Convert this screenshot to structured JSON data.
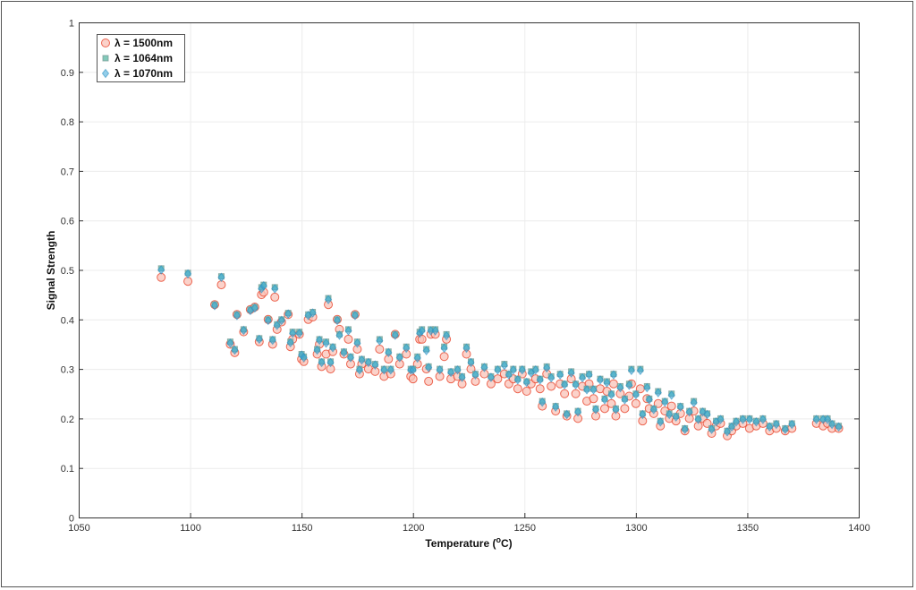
{
  "chart_data": {
    "type": "scatter",
    "xlabel": "Temperature  (",
    "xlabel_unit_sup": "o",
    "xlabel_unit": "C)",
    "ylabel": "Signal Strength",
    "xlim": [
      1050,
      1400
    ],
    "ylim": [
      0,
      1
    ],
    "xticks": [
      1050,
      1100,
      1150,
      1200,
      1250,
      1300,
      1350,
      1400
    ],
    "yticks": [
      0,
      0.1,
      0.2,
      0.3,
      0.4,
      0.5,
      0.6,
      0.7,
      0.8,
      0.9,
      1
    ],
    "xtick_labels": [
      "1050",
      "1100",
      "1150",
      "1200",
      "1250",
      "1300",
      "1350",
      "1400"
    ],
    "ytick_labels": [
      "0",
      "0.1",
      "0.2",
      "0.3",
      "0.4",
      "0.5",
      "0.6",
      "0.7",
      "0.8",
      "0.9",
      "1"
    ],
    "grid": true,
    "legend_position": "top-left",
    "x": [
      1087,
      1099,
      1111,
      1114,
      1118,
      1120,
      1121,
      1124,
      1127,
      1129,
      1131,
      1132,
      1133,
      1135,
      1137,
      1138,
      1139,
      1141,
      1144,
      1145,
      1146,
      1149,
      1150,
      1151,
      1153,
      1155,
      1157,
      1158,
      1159,
      1161,
      1162,
      1163,
      1164,
      1166,
      1167,
      1169,
      1171,
      1172,
      1174,
      1175,
      1176,
      1177,
      1180,
      1183,
      1185,
      1187,
      1189,
      1190,
      1192,
      1194,
      1197,
      1199,
      1200,
      1202,
      1203,
      1204,
      1206,
      1207,
      1208,
      1210,
      1212,
      1214,
      1215,
      1217,
      1220,
      1222,
      1224,
      1226,
      1228,
      1232,
      1235,
      1238,
      1241,
      1243,
      1245,
      1247,
      1249,
      1251,
      1253,
      1255,
      1257,
      1258,
      1260,
      1262,
      1264,
      1266,
      1268,
      1269,
      1271,
      1273,
      1274,
      1276,
      1278,
      1279,
      1281,
      1282,
      1284,
      1286,
      1287,
      1289,
      1290,
      1291,
      1293,
      1295,
      1297,
      1298,
      1300,
      1302,
      1303,
      1305,
      1306,
      1308,
      1310,
      1311,
      1313,
      1315,
      1316,
      1318,
      1320,
      1322,
      1324,
      1326,
      1328,
      1330,
      1332,
      1334,
      1336,
      1338,
      1341,
      1343,
      1345,
      1348,
      1351,
      1354,
      1357,
      1360,
      1363,
      1367,
      1370,
      1381,
      1384,
      1386,
      1388,
      1391
    ],
    "series": [
      {
        "name": "λ  =  1500nm",
        "marker": "circle",
        "color": "#e8452c",
        "fill": "#f9c3b8",
        "values": [
          0.485,
          0.477,
          0.43,
          0.47,
          0.35,
          0.333,
          0.41,
          0.375,
          0.42,
          0.425,
          0.355,
          0.45,
          0.455,
          0.4,
          0.35,
          0.445,
          0.38,
          0.395,
          0.41,
          0.345,
          0.36,
          0.37,
          0.32,
          0.315,
          0.4,
          0.405,
          0.33,
          0.35,
          0.305,
          0.33,
          0.43,
          0.3,
          0.335,
          0.4,
          0.38,
          0.33,
          0.36,
          0.31,
          0.41,
          0.34,
          0.29,
          0.31,
          0.3,
          0.295,
          0.34,
          0.285,
          0.32,
          0.29,
          0.37,
          0.31,
          0.33,
          0.285,
          0.28,
          0.31,
          0.36,
          0.36,
          0.3,
          0.275,
          0.37,
          0.37,
          0.285,
          0.325,
          0.36,
          0.28,
          0.285,
          0.27,
          0.33,
          0.3,
          0.275,
          0.29,
          0.27,
          0.28,
          0.29,
          0.27,
          0.28,
          0.26,
          0.29,
          0.255,
          0.27,
          0.28,
          0.26,
          0.225,
          0.29,
          0.265,
          0.215,
          0.27,
          0.25,
          0.205,
          0.28,
          0.25,
          0.2,
          0.265,
          0.235,
          0.27,
          0.24,
          0.205,
          0.26,
          0.22,
          0.255,
          0.23,
          0.27,
          0.205,
          0.25,
          0.22,
          0.245,
          0.27,
          0.23,
          0.26,
          0.195,
          0.24,
          0.22,
          0.21,
          0.23,
          0.185,
          0.215,
          0.2,
          0.225,
          0.195,
          0.21,
          0.175,
          0.2,
          0.215,
          0.185,
          0.2,
          0.19,
          0.17,
          0.185,
          0.19,
          0.165,
          0.175,
          0.185,
          0.19,
          0.18,
          0.185,
          0.19,
          0.175,
          0.18,
          0.175,
          0.18,
          0.19,
          0.185,
          0.19,
          0.18,
          0.18
        ]
      },
      {
        "name": "λ  =  1064nm",
        "marker": "square",
        "color": "#7a9e98",
        "fill": "#6cbfae",
        "values": [
          0.503,
          0.494,
          0.43,
          0.487,
          0.355,
          0.34,
          0.41,
          0.38,
          0.42,
          0.425,
          0.362,
          0.465,
          0.47,
          0.4,
          0.36,
          0.465,
          0.39,
          0.4,
          0.413,
          0.355,
          0.375,
          0.375,
          0.33,
          0.325,
          0.41,
          0.415,
          0.34,
          0.36,
          0.315,
          0.355,
          0.443,
          0.315,
          0.345,
          0.4,
          0.37,
          0.335,
          0.38,
          0.325,
          0.41,
          0.355,
          0.3,
          0.32,
          0.315,
          0.31,
          0.36,
          0.3,
          0.335,
          0.3,
          0.37,
          0.325,
          0.345,
          0.3,
          0.3,
          0.325,
          0.375,
          0.38,
          0.34,
          0.305,
          0.38,
          0.38,
          0.3,
          0.345,
          0.37,
          0.295,
          0.3,
          0.285,
          0.345,
          0.315,
          0.29,
          0.305,
          0.285,
          0.3,
          0.31,
          0.29,
          0.3,
          0.28,
          0.3,
          0.275,
          0.295,
          0.3,
          0.28,
          0.235,
          0.305,
          0.285,
          0.225,
          0.29,
          0.27,
          0.21,
          0.295,
          0.27,
          0.215,
          0.285,
          0.26,
          0.29,
          0.26,
          0.22,
          0.28,
          0.24,
          0.275,
          0.25,
          0.29,
          0.22,
          0.265,
          0.24,
          0.27,
          0.3,
          0.25,
          0.3,
          0.21,
          0.265,
          0.24,
          0.22,
          0.255,
          0.195,
          0.235,
          0.21,
          0.25,
          0.205,
          0.225,
          0.18,
          0.215,
          0.235,
          0.2,
          0.215,
          0.21,
          0.18,
          0.195,
          0.2,
          0.175,
          0.185,
          0.195,
          0.2,
          0.2,
          0.195,
          0.2,
          0.185,
          0.19,
          0.18,
          0.19,
          0.2,
          0.2,
          0.2,
          0.19,
          0.185
        ]
      },
      {
        "name": "λ  =  1070nm",
        "marker": "diamond",
        "color": "#2b8fc0",
        "fill": "#3aa6d8",
        "values": [
          0.5,
          0.492,
          0.428,
          0.485,
          0.352,
          0.338,
          0.408,
          0.378,
          0.418,
          0.423,
          0.36,
          0.462,
          0.468,
          0.398,
          0.358,
          0.462,
          0.388,
          0.398,
          0.411,
          0.353,
          0.372,
          0.372,
          0.328,
          0.323,
          0.408,
          0.413,
          0.338,
          0.358,
          0.313,
          0.352,
          0.44,
          0.313,
          0.343,
          0.398,
          0.368,
          0.333,
          0.377,
          0.323,
          0.408,
          0.352,
          0.298,
          0.318,
          0.313,
          0.308,
          0.357,
          0.298,
          0.333,
          0.298,
          0.368,
          0.323,
          0.342,
          0.298,
          0.298,
          0.322,
          0.372,
          0.377,
          0.337,
          0.303,
          0.377,
          0.377,
          0.298,
          0.342,
          0.367,
          0.293,
          0.298,
          0.283,
          0.342,
          0.313,
          0.288,
          0.303,
          0.283,
          0.298,
          0.307,
          0.288,
          0.298,
          0.278,
          0.298,
          0.273,
          0.292,
          0.298,
          0.278,
          0.233,
          0.302,
          0.282,
          0.223,
          0.288,
          0.268,
          0.208,
          0.292,
          0.268,
          0.213,
          0.282,
          0.258,
          0.288,
          0.258,
          0.218,
          0.278,
          0.238,
          0.272,
          0.248,
          0.288,
          0.218,
          0.262,
          0.238,
          0.267,
          0.297,
          0.248,
          0.297,
          0.208,
          0.262,
          0.238,
          0.218,
          0.252,
          0.193,
          0.233,
          0.208,
          0.247,
          0.203,
          0.223,
          0.178,
          0.213,
          0.232,
          0.198,
          0.213,
          0.208,
          0.178,
          0.193,
          0.198,
          0.173,
          0.183,
          0.193,
          0.198,
          0.198,
          0.193,
          0.198,
          0.183,
          0.188,
          0.178,
          0.188,
          0.198,
          0.198,
          0.198,
          0.188,
          0.183
        ]
      }
    ]
  }
}
